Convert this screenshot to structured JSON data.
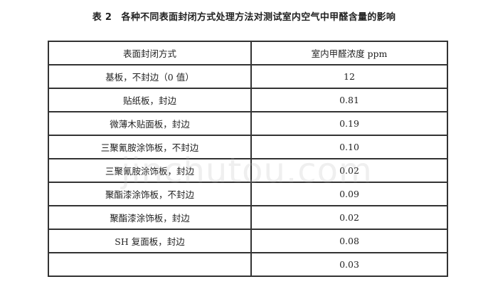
{
  "title": "表 2　各种不同表面封闭方式处理方法对测试室内空气中甲醛含量的影响",
  "table": {
    "headers": [
      "表面封闭方式",
      "室内甲醛浓度 ppm"
    ],
    "rows": [
      [
        "基板，不封边（0 值）",
        "12"
      ],
      [
        "贴纸板，封边",
        "0.81"
      ],
      [
        "微薄木贴面板，封边",
        "0.19"
      ],
      [
        "三聚氰胺涂饰板，不封边",
        "0.10"
      ],
      [
        "三聚氰胺涂饰板，封边",
        "0.02"
      ],
      [
        "聚酯漆涂饰板，不封边",
        "0.09"
      ],
      [
        "聚酯漆涂饰板，封边",
        "0.02"
      ],
      [
        "SH 复面板，封边",
        "0.08"
      ],
      [
        "",
        "0.03"
      ]
    ]
  },
  "watermark": "jinchutou.com"
}
